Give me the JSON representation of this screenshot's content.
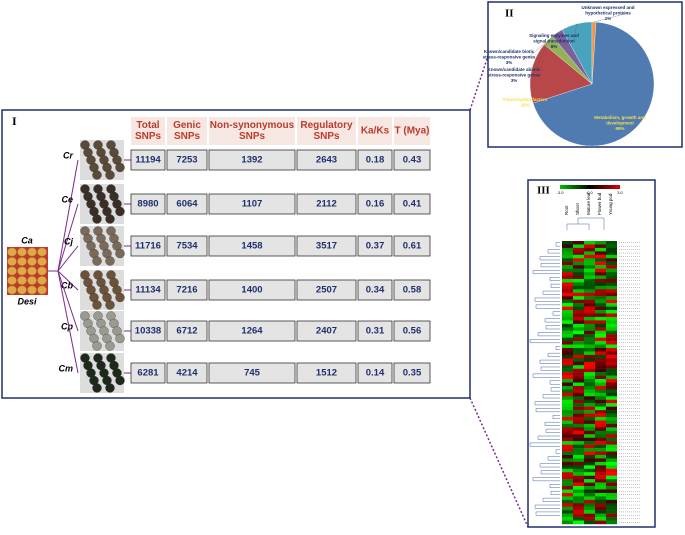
{
  "panel_i": {
    "label": "I",
    "root": {
      "species": "Ca",
      "name": "Desi"
    },
    "headers": [
      [
        "Total",
        "SNPs"
      ],
      [
        "Genic",
        "SNPs"
      ],
      [
        "Non-synonymous",
        "SNPs"
      ],
      [
        "Regulatory",
        "SNPs"
      ],
      [
        "Ka/Ks"
      ],
      [
        "T (Mya)"
      ]
    ],
    "rows": [
      [
        "Cr",
        11194,
        7253,
        1392,
        2643,
        0.18,
        0.43
      ],
      [
        "Ce",
        8980,
        6064,
        1107,
        2112,
        0.16,
        0.41
      ],
      [
        "Cj",
        11716,
        7534,
        1458,
        3517,
        0.37,
        0.61
      ],
      [
        "Cb",
        11134,
        7216,
        1400,
        2507,
        0.34,
        0.58
      ],
      [
        "Cp",
        10338,
        6712,
        1264,
        2407,
        0.31,
        0.56
      ],
      [
        "Cm",
        6281,
        4214,
        745,
        1512,
        0.14,
        0.35
      ]
    ]
  },
  "panel_ii": {
    "label": "II",
    "chart_data": {
      "type": "pie",
      "slices": [
        {
          "name": [
            "Metabolism, growth and",
            "development"
          ],
          "value": 69,
          "value_label": "69%",
          "color": "#4f7bb0",
          "text_color": "#f5e04a"
        },
        {
          "name": [
            "Transcription factors"
          ],
          "value": 16,
          "value_label": "16%",
          "color": "#b8474a",
          "text_color": "#f5e04a"
        },
        {
          "name": [
            "Known/candidate abiotic",
            "stress-responsive genes"
          ],
          "value": 3,
          "value_label": "3%",
          "color": "#93b257",
          "text_color": "#1f2f6b"
        },
        {
          "name": [
            "Known/candidate biotic",
            "stress-responsive genes"
          ],
          "value": 3,
          "value_label": "3%",
          "color": "#7b619c",
          "text_color": "#1f2f6b"
        },
        {
          "name": [
            "Signaling enzymes and",
            "signal transduction"
          ],
          "value": 8,
          "value_label": "8%",
          "color": "#4aa3bd",
          "text_color": "#1f2f6b"
        },
        {
          "name": [
            "Unknown expressed and",
            "hypothetical proteins"
          ],
          "value": 1,
          "value_label": "1%",
          "color": "#f0923e",
          "text_color": "#1f2f6b"
        }
      ]
    }
  },
  "panel_iii": {
    "label": "III",
    "scale_labels": [
      "-3.0",
      "0.0",
      "3.0"
    ],
    "columns": [
      "Root",
      "Shoot",
      "Mature leaf",
      "Flower bud",
      "Young pod"
    ]
  }
}
